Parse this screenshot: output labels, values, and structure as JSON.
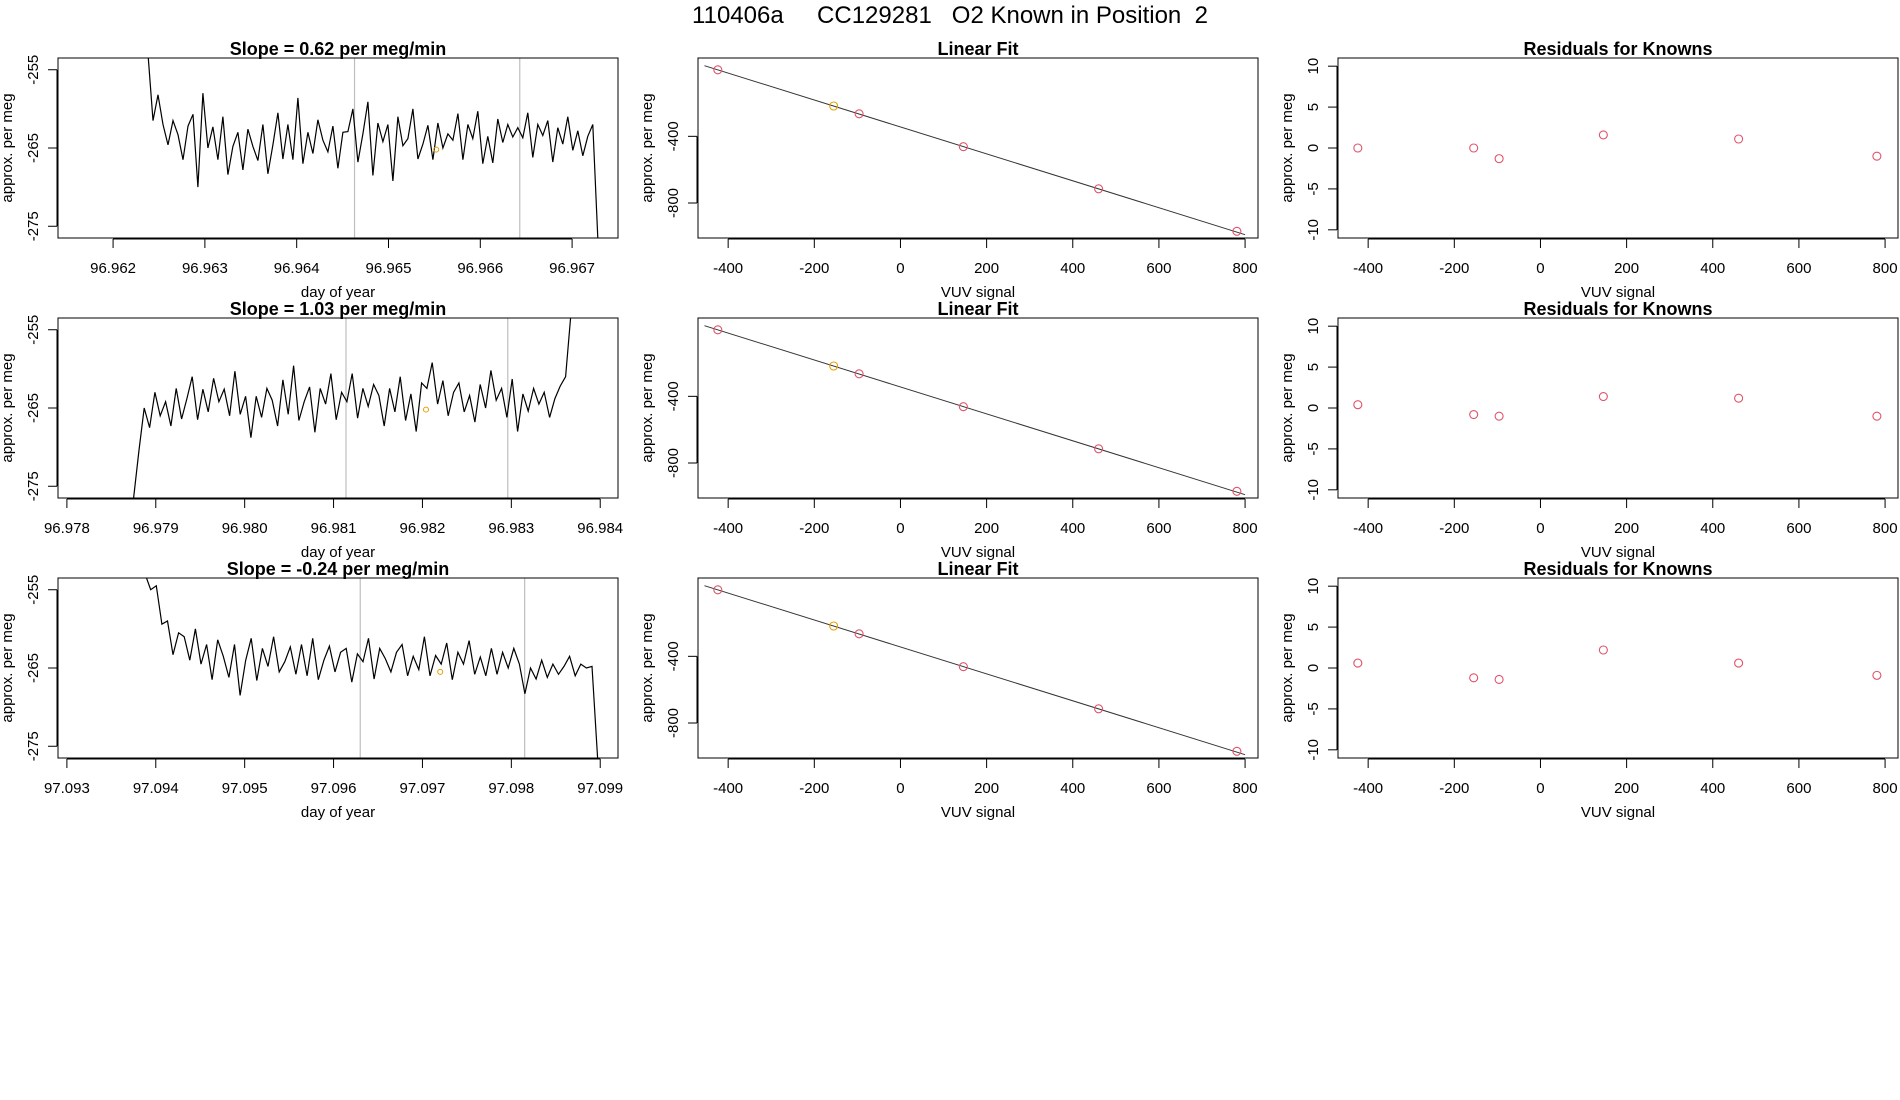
{
  "title": "110406a     CC129281   O2 Known in Position  2",
  "colors": {
    "line": "#000000",
    "grid": "#bebebe",
    "point": "#df536b",
    "highlight": "#e69f00"
  },
  "chart_data": [
    {
      "type": "line",
      "title": "Slope =  0.62  per meg/min",
      "xlabel": "day of year",
      "ylabel": "approx. per meg",
      "xlim": [
        96.9614,
        96.9675
      ],
      "ylim": [
        -276.5,
        -253.5
      ],
      "xticks": [
        "96.962",
        "96.963",
        "96.964",
        "96.965",
        "96.966",
        "96.967"
      ],
      "yticks": [
        "-255",
        "-265",
        "-275"
      ],
      "vlines": [
        96.96463,
        96.96643
      ],
      "series_span": [
        96.96238,
        96.96728
      ],
      "series": [
        -253,
        -261.5,
        -258.2,
        -262.0,
        -264.6,
        -261.5,
        -263.3,
        -266.5,
        -262.2,
        -260.7,
        -270.0,
        -258.0,
        -265.0,
        -262.3,
        -266.5,
        -261.0,
        -268.4,
        -264.8,
        -263.0,
        -267.8,
        -262.6,
        -264.8,
        -266.6,
        -262.0,
        -268.3,
        -264.6,
        -260.5,
        -266.4,
        -262.0,
        -266.5,
        -258.6,
        -267.0,
        -263.0,
        -265.7,
        -261.4,
        -264.0,
        -265.5,
        -262.2,
        -267.6,
        -263.0,
        -262.9,
        -260.0,
        -266.8,
        -263.2,
        -259.1,
        -268.5,
        -261.8,
        -264.2,
        -262.0,
        -269.2,
        -261.0,
        -264.7,
        -263.8,
        -260.0,
        -266.4,
        -264.5,
        -262.1,
        -266.5,
        -261.8,
        -265.0,
        -263.2,
        -264.0,
        -260.6,
        -266.5,
        -262.0,
        -263.8,
        -260.3,
        -267.0,
        -263.5,
        -266.9,
        -261.3,
        -264.3,
        -262.0,
        -263.6,
        -262.4,
        -263.7,
        -260.5,
        -266.2,
        -262.0,
        -263.4,
        -261.5,
        -266.8,
        -262.4,
        -264.5,
        -261.0,
        -265.3,
        -262.8,
        -266.0,
        -263.5,
        -262.0,
        -276.5
      ],
      "highlight_point": [
        96.96552,
        -265.2
      ]
    },
    {
      "type": "scatter",
      "title": "Linear Fit",
      "xlabel": "VUV signal",
      "ylabel": "approx. per meg",
      "xlim": [
        -470,
        830
      ],
      "ylim": [
        -1010,
        70
      ],
      "xticks": [
        -400,
        -200,
        0,
        200,
        400,
        600,
        800
      ],
      "yticks": [
        -400,
        -800
      ],
      "points": [
        [
          -424,
          -1
        ],
        [
          -155,
          -218
        ],
        [
          -96,
          -265
        ],
        [
          146,
          -462
        ],
        [
          460,
          -715
        ],
        [
          781,
          -970
        ]
      ],
      "highlight_index": 1,
      "fit_line": [
        [
          -455,
          24
        ],
        [
          800,
          -990
        ]
      ]
    },
    {
      "type": "scatter",
      "title": "Residuals for Knowns",
      "xlabel": "VUV signal",
      "ylabel": "approx. per meg",
      "xlim": [
        -470,
        830
      ],
      "ylim": [
        -11,
        11
      ],
      "xticks": [
        -400,
        -200,
        0,
        200,
        400,
        600,
        800
      ],
      "yticks": [
        10,
        5,
        0,
        -5,
        -10
      ],
      "points": [
        [
          -424,
          0.0
        ],
        [
          -155,
          0.0
        ],
        [
          -96,
          -1.3
        ],
        [
          146,
          1.6
        ],
        [
          460,
          1.1
        ],
        [
          781,
          -1.0
        ]
      ]
    },
    {
      "type": "line",
      "title": "Slope =  1.03  per meg/min",
      "xlabel": "day of year",
      "ylabel": "approx. per meg",
      "xlim": [
        96.9779,
        96.9842
      ],
      "ylim": [
        -276.5,
        -253.5
      ],
      "xticks": [
        "96.978",
        "96.979",
        "96.980",
        "96.981",
        "96.982",
        "96.983",
        "96.984"
      ],
      "yticks": [
        "-255",
        "-265",
        "-275"
      ],
      "vlines": [
        96.98114,
        96.98296
      ],
      "series_span": [
        96.97875,
        96.98367
      ],
      "series": [
        -276.5,
        -270.5,
        -265.0,
        -267.5,
        -263.0,
        -266.0,
        -264.2,
        -267.3,
        -262.5,
        -266.4,
        -263.8,
        -261.0,
        -266.5,
        -262.6,
        -265.5,
        -261.2,
        -264.2,
        -262.6,
        -266.0,
        -260.3,
        -265.8,
        -263.5,
        -268.8,
        -263.5,
        -266.2,
        -262.5,
        -264.0,
        -267.3,
        -261.4,
        -265.8,
        -259.6,
        -266.6,
        -264.2,
        -262.3,
        -268.1,
        -262.5,
        -264.5,
        -260.6,
        -266.5,
        -263.0,
        -264.2,
        -260.6,
        -266.3,
        -262.5,
        -264.8,
        -262.0,
        -263.4,
        -267.3,
        -262.5,
        -265.5,
        -261.0,
        -266.6,
        -263.2,
        -268.0,
        -261.8,
        -262.5,
        -259.2,
        -264.5,
        -261.5,
        -266.0,
        -263.0,
        -261.8,
        -265.5,
        -263.4,
        -266.8,
        -262.0,
        -265.0,
        -260.2,
        -264.0,
        -262.5,
        -266.2,
        -261.3,
        -268.0,
        -263.2,
        -265.4,
        -262.5,
        -264.5,
        -263.0,
        -266.2,
        -263.8,
        -262.2,
        -261.0,
        -253
      ],
      "highlight_point": [
        96.98204,
        -265.2
      ]
    },
    {
      "type": "scatter",
      "title": "Linear Fit",
      "xlabel": "VUV signal",
      "ylabel": "approx. per meg",
      "xlim": [
        -470,
        830
      ],
      "ylim": [
        -1010,
        70
      ],
      "xticks": [
        -400,
        -200,
        0,
        200,
        400,
        600,
        800
      ],
      "yticks": [
        -400,
        -800
      ],
      "points": [
        [
          -424,
          -1
        ],
        [
          -155,
          -218
        ],
        [
          -96,
          -265
        ],
        [
          146,
          -462
        ],
        [
          460,
          -715
        ],
        [
          781,
          -970
        ]
      ],
      "highlight_index": 1,
      "fit_line": [
        [
          -455,
          24
        ],
        [
          800,
          -990
        ]
      ]
    },
    {
      "type": "scatter",
      "title": "Residuals for Knowns",
      "xlabel": "VUV signal",
      "ylabel": "approx. per meg",
      "xlim": [
        -470,
        830
      ],
      "ylim": [
        -11,
        11
      ],
      "xticks": [
        -400,
        -200,
        0,
        200,
        400,
        600,
        800
      ],
      "yticks": [
        10,
        5,
        0,
        -5,
        -10
      ],
      "points": [
        [
          -424,
          0.4
        ],
        [
          -155,
          -0.8
        ],
        [
          -96,
          -1.0
        ],
        [
          146,
          1.4
        ],
        [
          460,
          1.2
        ],
        [
          781,
          -1.0
        ]
      ]
    },
    {
      "type": "line",
      "title": "Slope =  -0.24  per meg/min",
      "xlabel": "day of year",
      "ylabel": "approx. per meg",
      "xlim": [
        97.0929,
        97.0992
      ],
      "ylim": [
        -276.5,
        -253.5
      ],
      "xticks": [
        "97.093",
        "97.094",
        "97.095",
        "97.096",
        "97.097",
        "97.098",
        "97.099"
      ],
      "yticks": [
        "-255",
        "-265",
        "-275"
      ],
      "vlines": [
        97.0963,
        97.09815
      ],
      "series_span": [
        97.09388,
        97.09897
      ],
      "series": [
        -253,
        -255.0,
        -254.5,
        -259.4,
        -259.0,
        -263.3,
        -260.5,
        -261.0,
        -264.0,
        -260.0,
        -264.5,
        -262.0,
        -266.5,
        -261.4,
        -263.5,
        -266.2,
        -262.0,
        -268.5,
        -264.0,
        -261.2,
        -266.6,
        -262.5,
        -264.8,
        -261.0,
        -265.5,
        -264.2,
        -262.3,
        -265.8,
        -262.0,
        -266.0,
        -261.2,
        -266.5,
        -264.0,
        -262.2,
        -265.5,
        -263.0,
        -262.5,
        -266.8,
        -263.2,
        -264.2,
        -261.2,
        -266.4,
        -262.5,
        -263.8,
        -265.5,
        -263.0,
        -262.0,
        -266.0,
        -263.5,
        -265.2,
        -261.0,
        -266.0,
        -263.4,
        -264.5,
        -261.8,
        -266.5,
        -263.0,
        -264.5,
        -261.5,
        -265.8,
        -263.6,
        -266.0,
        -262.5,
        -265.8,
        -263.0,
        -265.0,
        -262.5,
        -264.5,
        -268.3,
        -265.0,
        -266.4,
        -264.0,
        -266.2,
        -264.5,
        -265.8,
        -264.8,
        -263.5,
        -266.0,
        -264.5,
        -265.0,
        -264.8,
        -276.5
      ],
      "highlight_point": [
        97.0972,
        -265.5
      ]
    },
    {
      "type": "scatter",
      "title": "Linear Fit",
      "xlabel": "VUV signal",
      "ylabel": "approx. per meg",
      "xlim": [
        -470,
        830
      ],
      "ylim": [
        -1010,
        70
      ],
      "xticks": [
        -400,
        -200,
        0,
        200,
        400,
        600,
        800
      ],
      "yticks": [
        -400,
        -800
      ],
      "points": [
        [
          -424,
          -1
        ],
        [
          -155,
          -218
        ],
        [
          -96,
          -265
        ],
        [
          146,
          -462
        ],
        [
          460,
          -715
        ],
        [
          781,
          -970
        ]
      ],
      "highlight_index": 1,
      "fit_line": [
        [
          -455,
          24
        ],
        [
          800,
          -990
        ]
      ]
    },
    {
      "type": "scatter",
      "title": "Residuals for Knowns",
      "xlabel": "VUV signal",
      "ylabel": "approx. per meg",
      "xlim": [
        -470,
        830
      ],
      "ylim": [
        -11,
        11
      ],
      "xticks": [
        -400,
        -200,
        0,
        200,
        400,
        600,
        800
      ],
      "yticks": [
        10,
        5,
        0,
        -5,
        -10
      ],
      "points": [
        [
          -424,
          0.6
        ],
        [
          -155,
          -1.2
        ],
        [
          -96,
          -1.4
        ],
        [
          146,
          2.2
        ],
        [
          460,
          0.6
        ],
        [
          781,
          -0.9
        ]
      ]
    }
  ]
}
